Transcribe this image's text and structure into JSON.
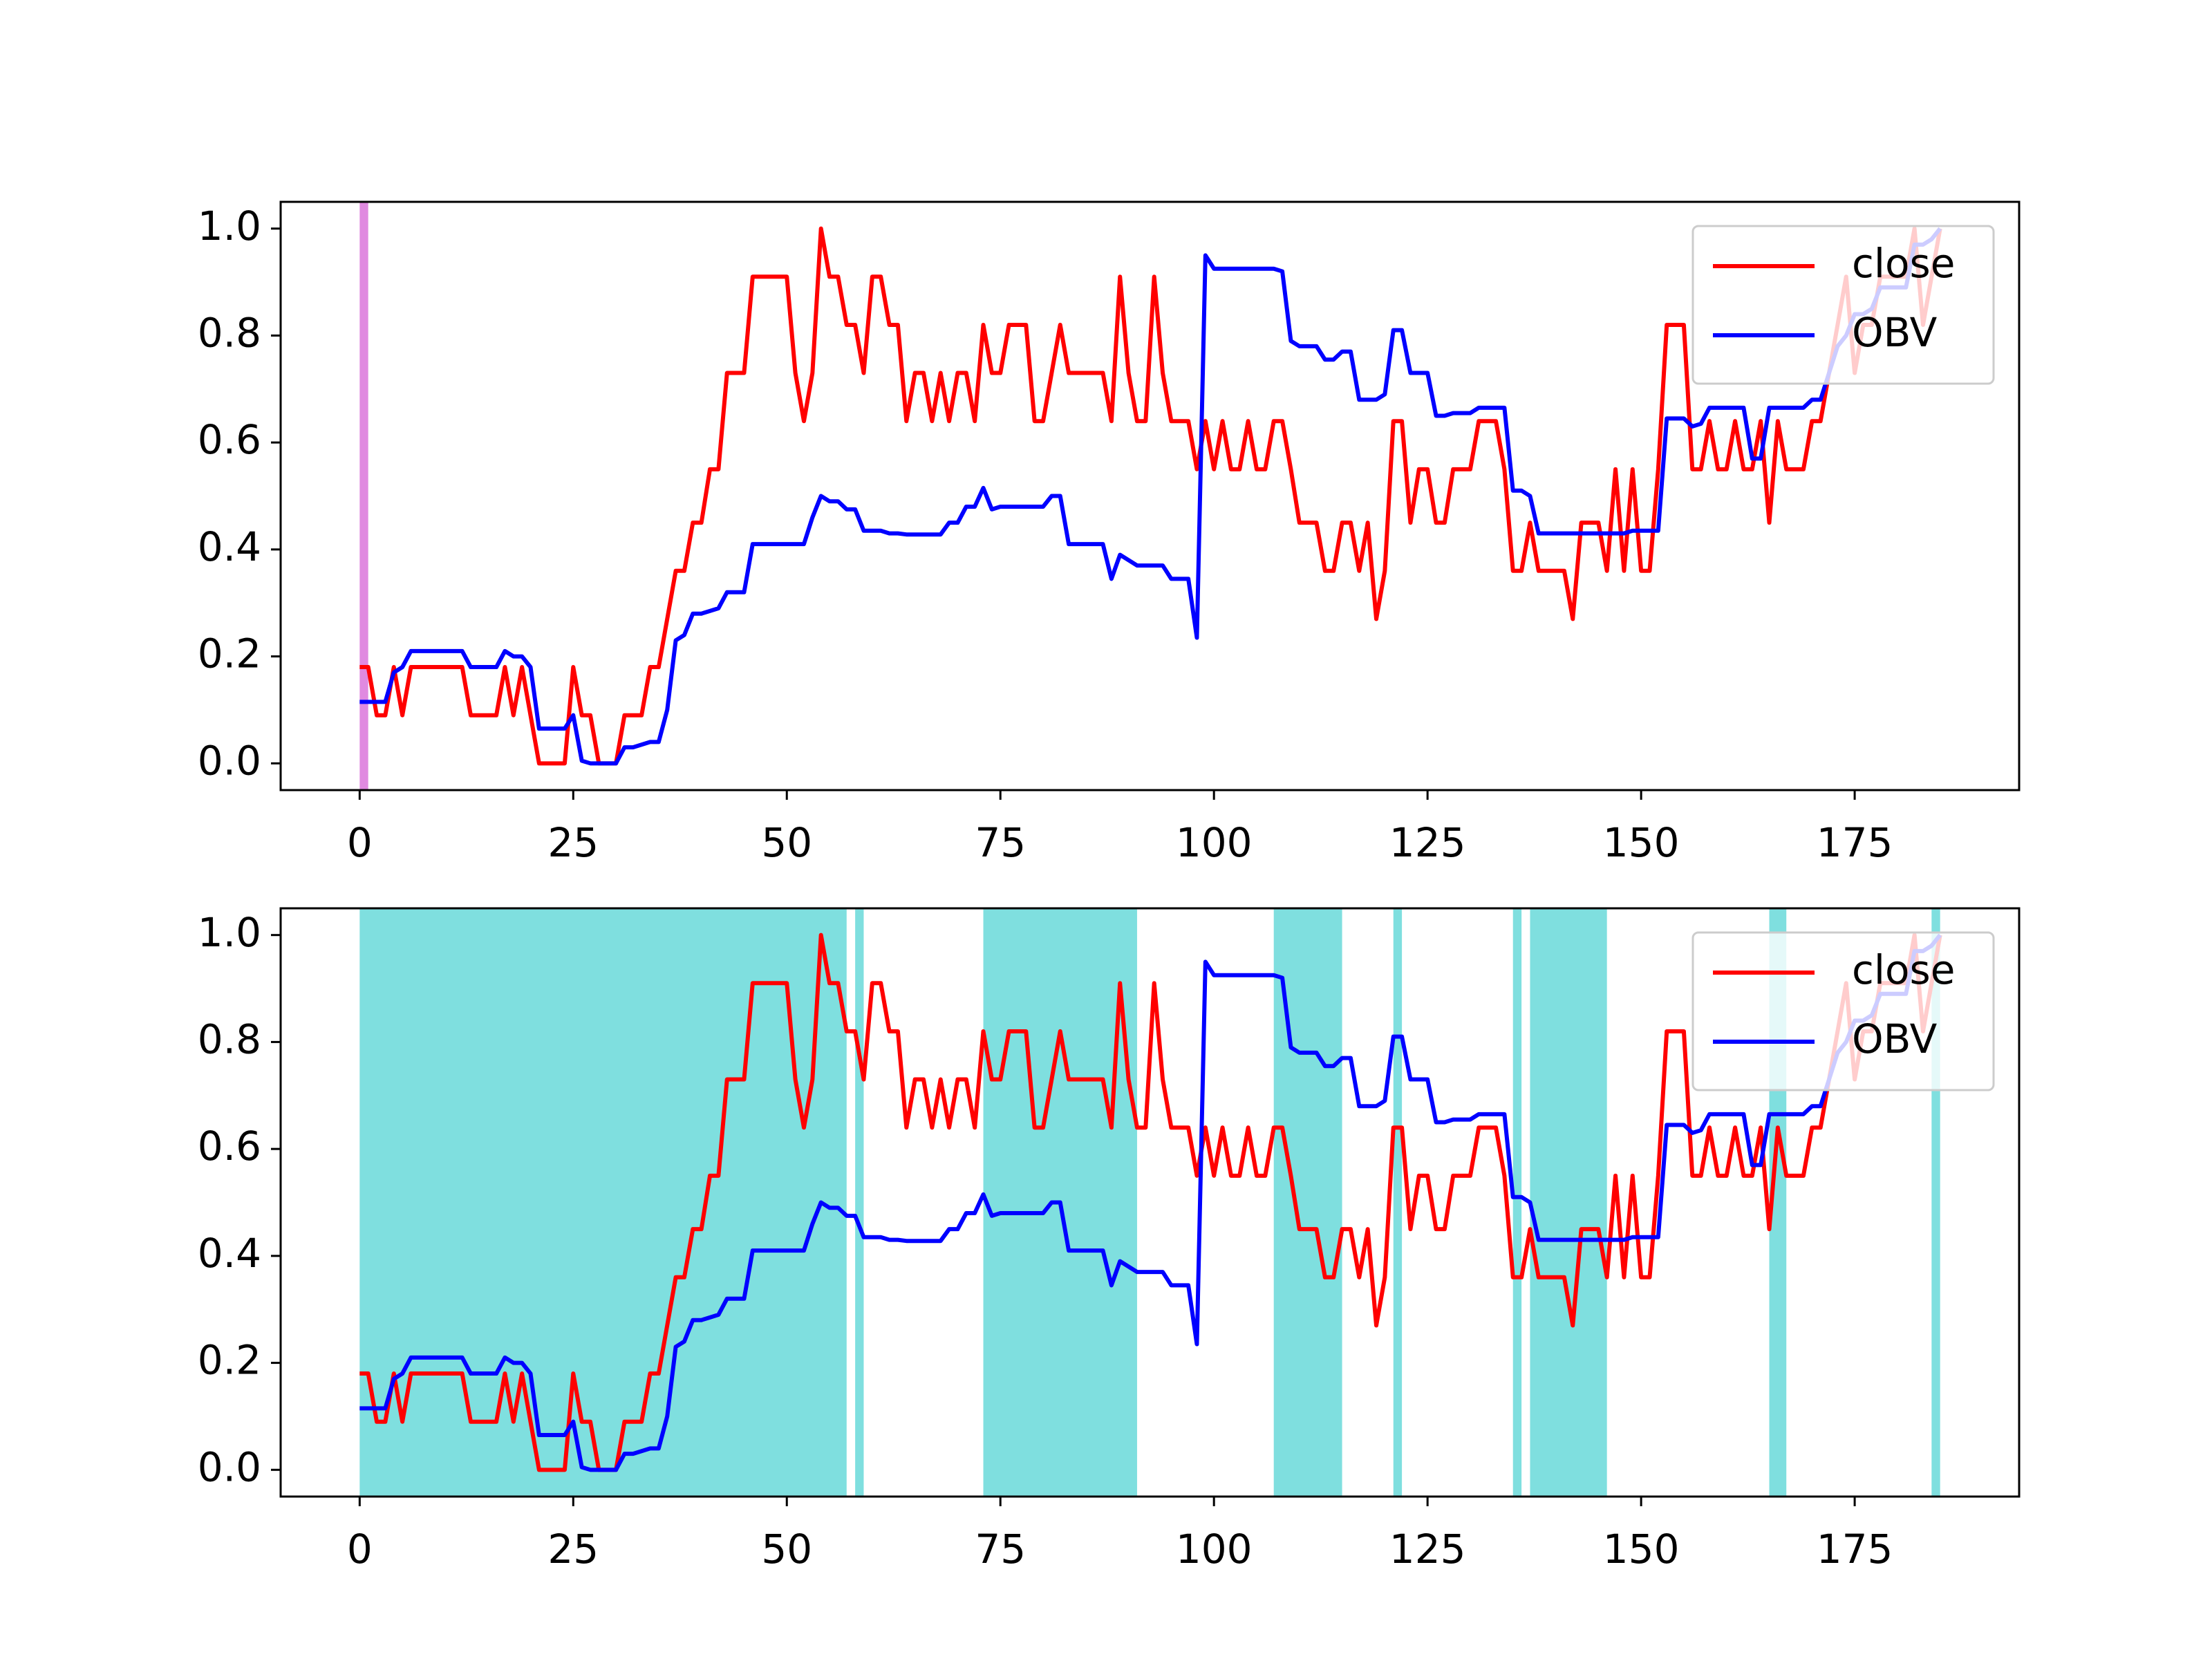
{
  "chart_data": [
    {
      "type": "line",
      "series": [
        {
          "name": "close",
          "color": "#ff0000",
          "values": [
            0.18,
            0.18,
            0.09,
            0.09,
            0.18,
            0.09,
            0.18,
            0.18,
            0.18,
            0.18,
            0.18,
            0.18,
            0.18,
            0.09,
            0.09,
            0.09,
            0.09,
            0.18,
            0.09,
            0.18,
            0.09,
            0,
            0,
            0,
            0,
            0.18,
            0.09,
            0.09,
            0,
            0,
            0,
            0.09,
            0.09,
            0.09,
            0.18,
            0.18,
            0.27,
            0.36,
            0.36,
            0.45,
            0.45,
            0.55,
            0.55,
            0.73,
            0.73,
            0.73,
            0.91,
            0.91,
            0.91,
            0.91,
            0.91,
            0.73,
            0.64,
            0.73,
            1.0,
            0.91,
            0.91,
            0.82,
            0.82,
            0.73,
            0.91,
            0.91,
            0.82,
            0.82,
            0.64,
            0.73,
            0.73,
            0.64,
            0.73,
            0.64,
            0.73,
            0.73,
            0.64,
            0.82,
            0.73,
            0.73,
            0.82,
            0.82,
            0.82,
            0.64,
            0.64,
            0.73,
            0.82,
            0.73,
            0.73,
            0.73,
            0.73,
            0.73,
            0.64,
            0.91,
            0.73,
            0.64,
            0.64,
            0.91,
            0.73,
            0.64,
            0.64,
            0.64,
            0.55,
            0.64,
            0.55,
            0.64,
            0.55,
            0.55,
            0.64,
            0.55,
            0.55,
            0.64,
            0.64,
            0.55,
            0.45,
            0.45,
            0.45,
            0.36,
            0.36,
            0.45,
            0.45,
            0.36,
            0.45,
            0.27,
            0.36,
            0.64,
            0.64,
            0.45,
            0.55,
            0.55,
            0.45,
            0.45,
            0.55,
            0.55,
            0.55,
            0.64,
            0.64,
            0.64,
            0.55,
            0.36,
            0.36,
            0.45,
            0.36,
            0.36,
            0.36,
            0.36,
            0.27,
            0.45,
            0.45,
            0.45,
            0.36,
            0.55,
            0.36,
            0.55,
            0.36,
            0.36,
            0.55,
            0.82,
            0.82,
            0.82,
            0.55,
            0.55,
            0.64,
            0.55,
            0.55,
            0.64,
            0.55,
            0.55,
            0.64,
            0.45,
            0.64,
            0.55,
            0.55,
            0.55,
            0.64,
            0.64,
            0.73,
            0.82,
            0.91,
            0.73,
            0.82,
            0.82,
            0.91,
            0.91,
            0.91,
            0.91,
            1.0,
            0.82,
            0.91,
            1.0
          ]
        },
        {
          "name": "OBV",
          "color": "#0000ff",
          "values": [
            0.115,
            0.115,
            0.115,
            0.115,
            0.17,
            0.18,
            0.21,
            0.21,
            0.21,
            0.21,
            0.21,
            0.21,
            0.21,
            0.18,
            0.18,
            0.18,
            0.18,
            0.21,
            0.2,
            0.2,
            0.18,
            0.065,
            0.065,
            0.065,
            0.065,
            0.09,
            0.005,
            0,
            0,
            0,
            0,
            0.03,
            0.03,
            0.035,
            0.04,
            0.04,
            0.1,
            0.23,
            0.24,
            0.28,
            0.28,
            0.285,
            0.29,
            0.32,
            0.32,
            0.32,
            0.41,
            0.41,
            0.41,
            0.41,
            0.41,
            0.41,
            0.41,
            0.46,
            0.5,
            0.49,
            0.49,
            0.475,
            0.475,
            0.435,
            0.435,
            0.435,
            0.43,
            0.43,
            0.428,
            0.428,
            0.428,
            0.428,
            0.428,
            0.45,
            0.45,
            0.48,
            0.48,
            0.515,
            0.475,
            0.48,
            0.48,
            0.48,
            0.48,
            0.48,
            0.48,
            0.5,
            0.5,
            0.41,
            0.41,
            0.41,
            0.41,
            0.41,
            0.345,
            0.39,
            0.38,
            0.37,
            0.37,
            0.37,
            0.37,
            0.345,
            0.345,
            0.345,
            0.235,
            0.95,
            0.925,
            0.925,
            0.925,
            0.925,
            0.925,
            0.925,
            0.925,
            0.925,
            0.92,
            0.79,
            0.78,
            0.78,
            0.78,
            0.755,
            0.755,
            0.77,
            0.77,
            0.68,
            0.68,
            0.68,
            0.69,
            0.81,
            0.81,
            0.73,
            0.73,
            0.73,
            0.65,
            0.65,
            0.655,
            0.655,
            0.655,
            0.665,
            0.665,
            0.665,
            0.665,
            0.51,
            0.51,
            0.5,
            0.43,
            0.43,
            0.43,
            0.43,
            0.43,
            0.43,
            0.43,
            0.43,
            0.43,
            0.43,
            0.43,
            0.435,
            0.435,
            0.435,
            0.435,
            0.645,
            0.645,
            0.645,
            0.63,
            0.635,
            0.665,
            0.665,
            0.665,
            0.665,
            0.665,
            0.57,
            0.57,
            0.665,
            0.665,
            0.665,
            0.665,
            0.665,
            0.68,
            0.68,
            0.73,
            0.78,
            0.8,
            0.84,
            0.84,
            0.85,
            0.89,
            0.89,
            0.89,
            0.89,
            0.97,
            0.97,
            0.98,
            1.0
          ]
        }
      ],
      "spans": [
        [
          0,
          1
        ]
      ],
      "span_color": "#e08ae0",
      "xlim": [
        -9.25,
        194.25
      ],
      "ylim": [
        -0.05,
        1.05
      ],
      "xticks": [
        0,
        25,
        50,
        75,
        100,
        125,
        150,
        175
      ],
      "yticks": [
        {
          "value": 0,
          "label": "0.0"
        },
        0.2,
        0.4,
        0.6,
        0.8,
        {
          "value": 1,
          "label": "1.0"
        }
      ],
      "legend": "upper right"
    },
    {
      "type": "line",
      "series": [
        {
          "name": "close",
          "color": "#ff0000",
          "values": [
            0.18,
            0.18,
            0.09,
            0.09,
            0.18,
            0.09,
            0.18,
            0.18,
            0.18,
            0.18,
            0.18,
            0.18,
            0.18,
            0.09,
            0.09,
            0.09,
            0.09,
            0.18,
            0.09,
            0.18,
            0.09,
            0,
            0,
            0,
            0,
            0.18,
            0.09,
            0.09,
            0,
            0,
            0,
            0.09,
            0.09,
            0.09,
            0.18,
            0.18,
            0.27,
            0.36,
            0.36,
            0.45,
            0.45,
            0.55,
            0.55,
            0.73,
            0.73,
            0.73,
            0.91,
            0.91,
            0.91,
            0.91,
            0.91,
            0.73,
            0.64,
            0.73,
            1.0,
            0.91,
            0.91,
            0.82,
            0.82,
            0.73,
            0.91,
            0.91,
            0.82,
            0.82,
            0.64,
            0.73,
            0.73,
            0.64,
            0.73,
            0.64,
            0.73,
            0.73,
            0.64,
            0.82,
            0.73,
            0.73,
            0.82,
            0.82,
            0.82,
            0.64,
            0.64,
            0.73,
            0.82,
            0.73,
            0.73,
            0.73,
            0.73,
            0.73,
            0.64,
            0.91,
            0.73,
            0.64,
            0.64,
            0.91,
            0.73,
            0.64,
            0.64,
            0.64,
            0.55,
            0.64,
            0.55,
            0.64,
            0.55,
            0.55,
            0.64,
            0.55,
            0.55,
            0.64,
            0.64,
            0.55,
            0.45,
            0.45,
            0.45,
            0.36,
            0.36,
            0.45,
            0.45,
            0.36,
            0.45,
            0.27,
            0.36,
            0.64,
            0.64,
            0.45,
            0.55,
            0.55,
            0.45,
            0.45,
            0.55,
            0.55,
            0.55,
            0.64,
            0.64,
            0.64,
            0.55,
            0.36,
            0.36,
            0.45,
            0.36,
            0.36,
            0.36,
            0.36,
            0.27,
            0.45,
            0.45,
            0.45,
            0.36,
            0.55,
            0.36,
            0.55,
            0.36,
            0.36,
            0.55,
            0.82,
            0.82,
            0.82,
            0.55,
            0.55,
            0.64,
            0.55,
            0.55,
            0.64,
            0.55,
            0.55,
            0.64,
            0.45,
            0.64,
            0.55,
            0.55,
            0.55,
            0.64,
            0.64,
            0.73,
            0.82,
            0.91,
            0.73,
            0.82,
            0.82,
            0.91,
            0.91,
            0.91,
            0.91,
            1.0,
            0.82,
            0.91,
            1.0
          ]
        },
        {
          "name": "OBV",
          "color": "#0000ff",
          "values": [
            0.115,
            0.115,
            0.115,
            0.115,
            0.17,
            0.18,
            0.21,
            0.21,
            0.21,
            0.21,
            0.21,
            0.21,
            0.21,
            0.18,
            0.18,
            0.18,
            0.18,
            0.21,
            0.2,
            0.2,
            0.18,
            0.065,
            0.065,
            0.065,
            0.065,
            0.09,
            0.005,
            0,
            0,
            0,
            0,
            0.03,
            0.03,
            0.035,
            0.04,
            0.04,
            0.1,
            0.23,
            0.24,
            0.28,
            0.28,
            0.285,
            0.29,
            0.32,
            0.32,
            0.32,
            0.41,
            0.41,
            0.41,
            0.41,
            0.41,
            0.41,
            0.41,
            0.46,
            0.5,
            0.49,
            0.49,
            0.475,
            0.475,
            0.435,
            0.435,
            0.435,
            0.43,
            0.43,
            0.428,
            0.428,
            0.428,
            0.428,
            0.428,
            0.45,
            0.45,
            0.48,
            0.48,
            0.515,
            0.475,
            0.48,
            0.48,
            0.48,
            0.48,
            0.48,
            0.48,
            0.5,
            0.5,
            0.41,
            0.41,
            0.41,
            0.41,
            0.41,
            0.345,
            0.39,
            0.38,
            0.37,
            0.37,
            0.37,
            0.37,
            0.345,
            0.345,
            0.345,
            0.235,
            0.95,
            0.925,
            0.925,
            0.925,
            0.925,
            0.925,
            0.925,
            0.925,
            0.925,
            0.92,
            0.79,
            0.78,
            0.78,
            0.78,
            0.755,
            0.755,
            0.77,
            0.77,
            0.68,
            0.68,
            0.68,
            0.69,
            0.81,
            0.81,
            0.73,
            0.73,
            0.73,
            0.65,
            0.65,
            0.655,
            0.655,
            0.655,
            0.665,
            0.665,
            0.665,
            0.665,
            0.51,
            0.51,
            0.5,
            0.43,
            0.43,
            0.43,
            0.43,
            0.43,
            0.43,
            0.43,
            0.43,
            0.43,
            0.43,
            0.43,
            0.435,
            0.435,
            0.435,
            0.435,
            0.645,
            0.645,
            0.645,
            0.63,
            0.635,
            0.665,
            0.665,
            0.665,
            0.665,
            0.665,
            0.57,
            0.57,
            0.665,
            0.665,
            0.665,
            0.665,
            0.665,
            0.68,
            0.68,
            0.73,
            0.78,
            0.8,
            0.84,
            0.84,
            0.85,
            0.89,
            0.89,
            0.89,
            0.89,
            0.97,
            0.97,
            0.98,
            1.0
          ]
        }
      ],
      "spans": [
        [
          0,
          57
        ],
        [
          58,
          59
        ],
        [
          73,
          91
        ],
        [
          107,
          115
        ],
        [
          121,
          122
        ],
        [
          135,
          136
        ],
        [
          137,
          146
        ],
        [
          165,
          167
        ],
        [
          184,
          185
        ]
      ],
      "span_color": "#7fdfdf",
      "xlim": [
        -9.25,
        194.25
      ],
      "ylim": [
        -0.05,
        1.05
      ],
      "xticks": [
        0,
        25,
        50,
        75,
        100,
        125,
        150,
        175
      ],
      "yticks": [
        {
          "value": 0,
          "label": "0.0"
        },
        0.2,
        0.4,
        0.6,
        0.8,
        {
          "value": 1,
          "label": "1.0"
        }
      ],
      "legend": "upper right"
    }
  ]
}
